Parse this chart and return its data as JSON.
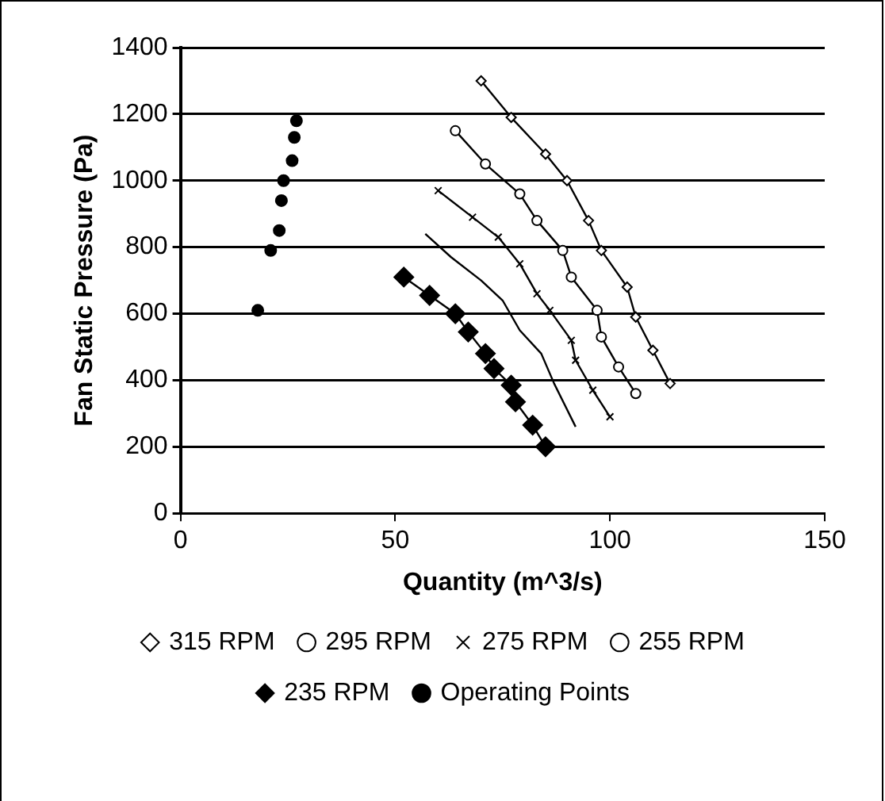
{
  "chart_data": {
    "type": "line",
    "xlabel": "Quantity (m^3/s)",
    "ylabel": "Fan Static Pressure (Pa)",
    "xlim": [
      0,
      150
    ],
    "xticks": [
      0,
      50,
      100,
      150
    ],
    "ylim": [
      0,
      1400
    ],
    "yticks": [
      0,
      200,
      400,
      600,
      800,
      1000,
      1200,
      1400
    ],
    "grid": "y",
    "legend": "bottom",
    "line_style": "solid",
    "series": [
      {
        "name": "315 RPM",
        "marker": "diamond",
        "color": "#000000",
        "x": [
          70,
          77,
          85,
          90,
          95,
          98,
          104,
          106,
          110,
          114
        ],
        "values": [
          1300,
          1190,
          1080,
          1000,
          880,
          790,
          680,
          590,
          490,
          390
        ]
      },
      {
        "name": "295 RPM",
        "marker": "circle",
        "color": "#000000",
        "x": [
          64,
          71,
          79,
          83,
          89,
          91,
          97,
          98,
          102,
          106
        ],
        "values": [
          1150,
          1050,
          960,
          880,
          790,
          710,
          610,
          530,
          440,
          360
        ]
      },
      {
        "name": "275 RPM",
        "marker": "cross",
        "color": "#000000",
        "x": [
          60,
          68,
          74,
          79,
          83,
          86,
          91,
          92,
          96,
          100
        ],
        "values": [
          970,
          890,
          830,
          750,
          660,
          610,
          520,
          460,
          370,
          290
        ]
      },
      {
        "name": "255 RPM",
        "marker": "none",
        "color": "#000000",
        "x": [
          57,
          63,
          70,
          75,
          79,
          84,
          87,
          92
        ],
        "values": [
          840,
          770,
          700,
          640,
          550,
          480,
          390,
          260
        ]
      },
      {
        "name": "235 RPM",
        "marker": "diamond",
        "color": "#000000",
        "x": [
          52,
          58,
          64,
          67,
          71,
          73,
          77,
          78,
          82,
          85
        ],
        "values": [
          710,
          655,
          600,
          545,
          480,
          435,
          385,
          335,
          265,
          200
        ]
      },
      {
        "name": "Operating Points",
        "type": "scatter",
        "marker": "circle",
        "color": "#000000",
        "x": [
          18,
          21,
          23,
          23.5,
          24,
          26,
          26.5,
          27
        ],
        "values": [
          610,
          790,
          850,
          940,
          1000,
          1060,
          1130,
          1180
        ]
      }
    ]
  }
}
